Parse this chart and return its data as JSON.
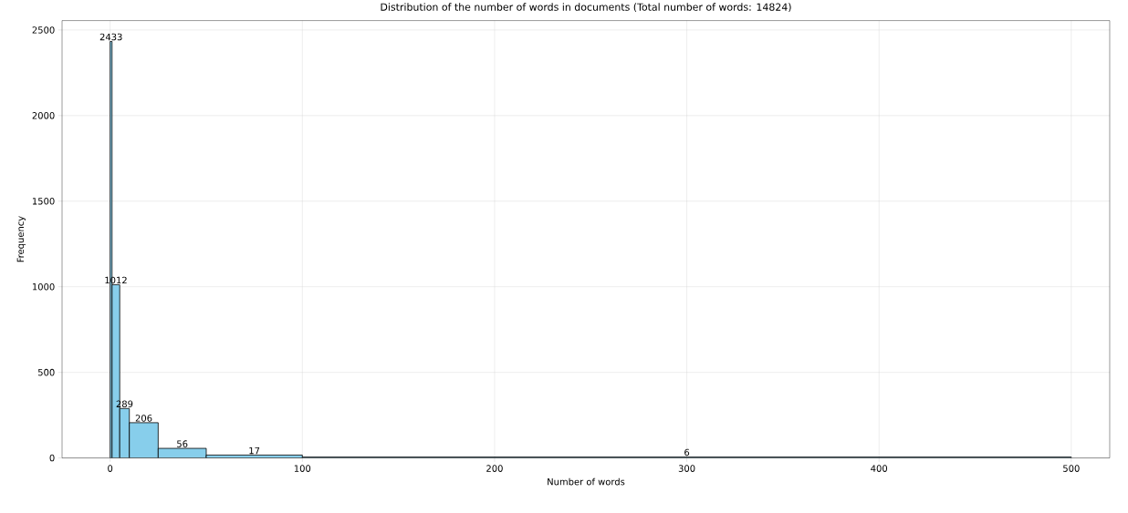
{
  "chart_data": {
    "type": "histogram",
    "title": "Distribution of the number of words in documents (Total number of words: 14824)",
    "xlabel": "Number of words",
    "ylabel": "Frequency",
    "bins": [
      0,
      1,
      5,
      10,
      25,
      50,
      100,
      500
    ],
    "values": [
      2433,
      1012,
      289,
      206,
      56,
      17,
      6
    ],
    "color": "#87ceeb",
    "xlim": [
      -25,
      520
    ],
    "ylim": [
      0,
      2555
    ],
    "xticks": [
      0,
      100,
      200,
      300,
      400,
      500
    ],
    "yticks": [
      0,
      500,
      1000,
      1500,
      2000,
      2500
    ],
    "grid": true,
    "data_labels": true
  }
}
